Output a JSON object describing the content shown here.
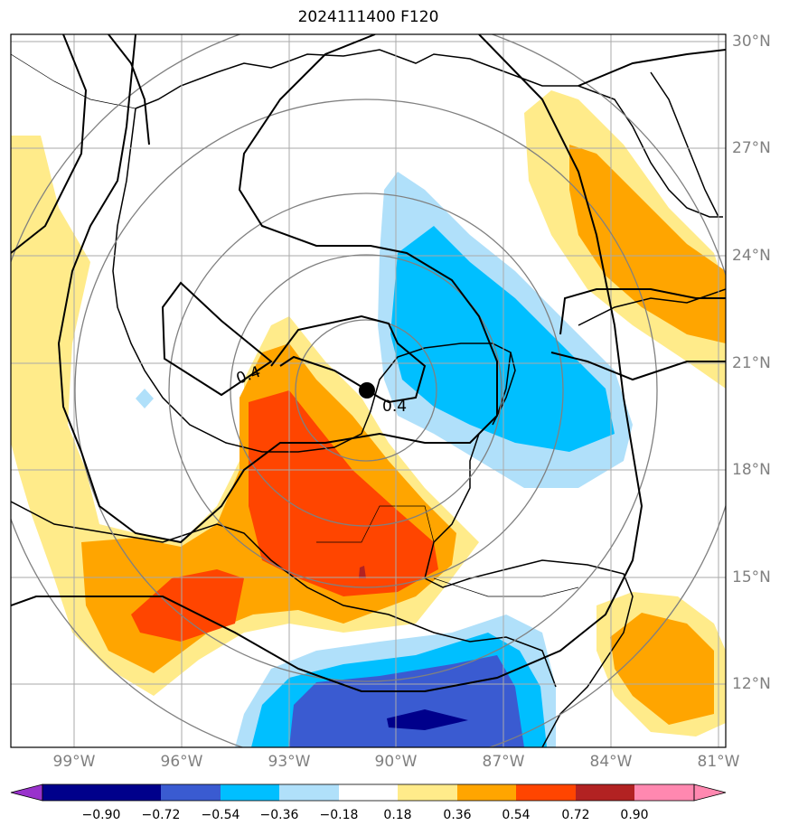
{
  "title": "2024111400 F120",
  "contour_labels": [
    "0.4",
    "0.4"
  ],
  "latitude_labels": [
    "30°N",
    "27°N",
    "24°N",
    "21°N",
    "18°N",
    "15°N",
    "12°N"
  ],
  "longitude_labels": [
    "99°W",
    "96°W",
    "93°W",
    "90°W",
    "87°W",
    "84°W",
    "81°W"
  ],
  "colorbar": {
    "tick_labels": [
      "−0.90",
      "−0.72",
      "−0.54",
      "−0.36",
      "−0.18",
      "0.18",
      "0.36",
      "0.54",
      "0.72",
      "0.90"
    ],
    "colors": [
      "#9932cc",
      "#00008b",
      "#3a5bd1",
      "#00bfff",
      "#b0e0fa",
      "#ffffff",
      "#ffeb8a",
      "#ffa500",
      "#ff4500",
      "#b22222",
      "#ff88b0"
    ]
  },
  "map": {
    "extent_lon": [
      -100,
      -81
    ],
    "extent_lat": [
      10,
      30
    ],
    "center_marker": {
      "lon": -90.7,
      "lat": 20.2,
      "color": "#000000"
    }
  }
}
